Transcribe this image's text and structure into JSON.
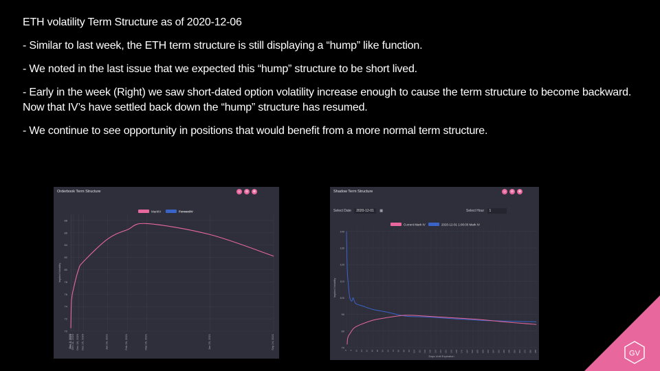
{
  "slide": {
    "title": "ETH volatility  Term Structure as of 2020-12-06",
    "bullets": [
      "- Similar to last week, the ETH term structure is still displaying  a “hump” like function.",
      "- We noted in the last issue that we expected this “hump” structure to be short lived.",
      "- Early in the week (Right) we saw short-dated option volatility increase enough to cause the term structure to become backward. Now that IV’s have settled back down the “hump” structure has resumed.",
      "- We continue to see opportunity in positions that would benefit from a more normal term structure."
    ]
  },
  "left_panel": {
    "title": "Orderbook Term Structure",
    "buttons": [
      "☺",
      "⊖",
      "⊕"
    ],
    "ylabel": "Implied Volatility",
    "legend": [
      "MarkIV",
      "ForwardIV"
    ]
  },
  "right_panel": {
    "title": "Shadow Term Structure",
    "buttons": [
      "☺",
      "⊖",
      "⊕"
    ],
    "select_date_label": "Select Date",
    "select_date_value": "2020-12-01",
    "select_hour_label": "Select Hour",
    "select_hour_value": "1",
    "ylabel": "Implied Volatility",
    "xlabel": "Days Until Expiration",
    "legend": [
      "Current Mark IV",
      "2020-12-01 1:00:00 Mark IV"
    ]
  },
  "colors": {
    "pink": "#e8689e",
    "blue": "#3a63c8",
    "panel_bg": "#2e2f3b"
  },
  "logo": {
    "text": "GV"
  },
  "chart_data": [
    {
      "type": "line",
      "title": "Orderbook Term Structure",
      "ylabel": "Implied Volatility",
      "x": [
        "Dec 7, 2020",
        "Dec 8, 2020",
        "Dec 11, 2020",
        "Dec 18, 2020",
        "Dec 25, 2020",
        "Jan 29, 2021",
        "Feb 26, 2021",
        "Mar 26, 2021",
        "Jun 25, 2021",
        "Sep 24, 2021"
      ],
      "x_days": [
        1,
        2,
        5,
        12,
        19,
        54,
        82,
        110,
        201,
        292
      ],
      "series": [
        {
          "name": "MarkIV",
          "values": [
            70.5,
            75,
            77,
            80,
            81.3,
            85,
            86.5,
            87.5,
            85.7,
            82.2
          ]
        }
      ],
      "ylim": [
        70,
        89
      ],
      "yticks": [
        70,
        72,
        74,
        76,
        78,
        80,
        82,
        84,
        86,
        88
      ],
      "xlim_days": [
        0,
        292
      ],
      "legend": "top-center",
      "grid": true
    },
    {
      "type": "line",
      "title": "Shadow Term Structure",
      "xlabel": "Days Until Expiration",
      "ylabel": "Implied Volatility",
      "xlim": [
        0,
        288
      ],
      "ylim": [
        70,
        142
      ],
      "yticks": [
        70,
        80,
        90,
        100,
        110,
        120,
        130,
        140
      ],
      "series": [
        {
          "name": "Current Mark IV",
          "x": [
            1,
            2,
            6,
            12,
            22,
            40,
            60,
            90,
            120,
            160,
            200,
            240,
            288
          ],
          "values": [
            72,
            76,
            79,
            82,
            84,
            86.5,
            88,
            89.5,
            89,
            88,
            87,
            85.5,
            84
          ]
        },
        {
          "name": "2020-12-01 1:00:00 Mark IV",
          "x": [
            0,
            1,
            3,
            5,
            8,
            10,
            13,
            17,
            25,
            40,
            60,
            90,
            120,
            160,
            200,
            240,
            288
          ],
          "values": [
            140,
            118,
            107,
            100,
            98,
            100,
            97,
            96,
            95,
            93,
            91.5,
            89,
            88.5,
            87.5,
            86.5,
            86,
            85.5
          ]
        }
      ],
      "legend": "top-center",
      "grid": true
    }
  ]
}
